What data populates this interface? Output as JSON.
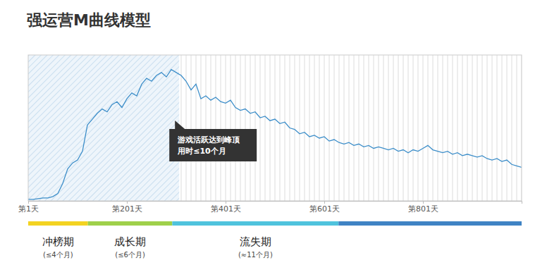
{
  "chart_data": {
    "type": "line",
    "title": "强运营M曲线模型",
    "x": [
      1,
      11,
      21,
      31,
      41,
      51,
      61,
      71,
      81,
      91,
      101,
      111,
      121,
      131,
      141,
      151,
      161,
      171,
      181,
      191,
      201,
      211,
      221,
      231,
      241,
      251,
      261,
      271,
      281,
      291,
      301,
      311,
      321,
      331,
      341,
      351,
      361,
      371,
      381,
      391,
      401,
      411,
      421,
      431,
      441,
      451,
      461,
      471,
      481,
      491,
      501,
      511,
      521,
      531,
      541,
      551,
      561,
      571,
      581,
      591,
      601,
      611,
      621,
      631,
      641,
      651,
      661,
      671,
      681,
      691,
      701,
      711,
      721,
      731,
      741,
      751,
      761,
      771,
      781,
      791,
      801,
      811,
      821,
      831,
      841,
      851,
      861,
      871,
      881,
      891,
      901,
      911,
      921,
      931,
      941,
      951,
      961,
      971,
      981,
      991,
      1001
    ],
    "values": [
      1,
      1,
      1.5,
      2,
      2,
      3,
      5,
      12,
      22,
      26,
      28,
      34,
      52,
      56,
      60,
      63,
      61,
      66,
      68,
      64,
      70,
      74,
      72,
      80,
      84,
      82,
      86,
      88,
      85,
      90,
      88,
      86,
      82,
      76,
      80,
      70,
      72,
      69,
      71,
      68,
      67,
      69,
      64,
      62,
      63,
      60,
      61,
      57,
      58,
      55,
      56,
      53,
      54,
      50,
      49,
      46,
      47,
      44,
      45,
      43,
      44,
      41,
      42,
      40,
      39,
      40,
      38,
      39,
      37,
      38,
      36,
      37,
      36,
      35,
      36,
      34,
      35,
      33,
      35,
      34,
      36,
      38,
      35,
      34,
      33,
      34,
      32,
      33,
      31,
      32,
      31,
      30,
      31,
      29,
      28,
      29,
      27,
      28,
      25,
      24,
      23
    ],
    "color": "#3d8ec9",
    "xlim": [
      1,
      1001
    ],
    "xticks": [
      {
        "value": 1,
        "label": "第1天"
      },
      {
        "value": 201,
        "label": "第201天"
      },
      {
        "value": 401,
        "label": "第401天"
      },
      {
        "value": 601,
        "label": "第601天"
      },
      {
        "value": 801,
        "label": "第801天"
      }
    ],
    "ylim": [
      0,
      100
    ],
    "tick_labels": "x",
    "grid": true,
    "highlight": {
      "start": 1,
      "end": 307
    },
    "annotation": {
      "lines": [
        "游戏活跃达到峰顶",
        "用时≤10个月"
      ]
    },
    "phases": [
      {
        "name": "冲榜期",
        "note": "(≤4个月)",
        "start": 1,
        "end": 122,
        "color": "#f3d321"
      },
      {
        "name": "成长期",
        "note": "(≤6个月)",
        "start": 122,
        "end": 293,
        "color": "#9fd04a"
      },
      {
        "name": "流失期",
        "note": "(≈11个月)",
        "start": 293,
        "end": 630,
        "color": "#4fc3dd"
      },
      {
        "name": null,
        "note": null,
        "start": 630,
        "end": 1001,
        "color": "#3f83c4"
      }
    ]
  }
}
